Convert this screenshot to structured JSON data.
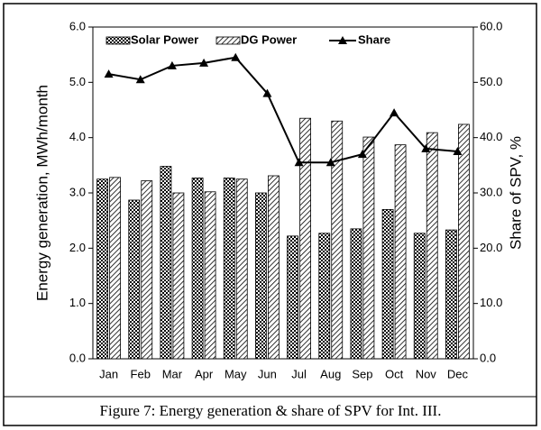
{
  "caption": "Figure 7: Energy generation & share of SPV for Int. III.",
  "chart_data": {
    "type": "bar",
    "ylabel": "Energy generation, MWh/month",
    "y2label": "Share of SPV, %",
    "categories": [
      "Jan",
      "Feb",
      "Mar",
      "Apr",
      "May",
      "Jun",
      "Jul",
      "Aug",
      "Sep",
      "Oct",
      "Nov",
      "Dec"
    ],
    "series": [
      {
        "name": "Solar Power",
        "color": "#000000",
        "values": [
          3.25,
          2.87,
          3.48,
          3.27,
          3.27,
          3.0,
          2.22,
          2.27,
          2.35,
          2.7,
          2.27,
          2.33
        ]
      },
      {
        "name": "DG Power",
        "color": "#000000",
        "values": [
          3.28,
          3.22,
          3.0,
          3.02,
          3.25,
          3.31,
          4.35,
          4.3,
          4.01,
          3.87,
          4.09,
          4.24
        ]
      },
      {
        "name": "Share",
        "color": "#000000",
        "axis": "y2",
        "values": [
          51.5,
          50.5,
          53,
          53.5,
          54.5,
          48,
          35.5,
          35.5,
          37,
          44.5,
          38,
          37.5
        ]
      }
    ],
    "ylim": [
      0,
      6
    ],
    "yticks": [
      {
        "value": 0,
        "label": "0.0"
      },
      {
        "value": 1,
        "label": "1.0"
      },
      {
        "value": 2,
        "label": "2.0"
      },
      {
        "value": 3,
        "label": "3.0"
      },
      {
        "value": 4,
        "label": "4.0"
      },
      {
        "value": 5,
        "label": "5.0"
      },
      {
        "value": 6,
        "label": "6.0"
      }
    ],
    "y2lim": [
      0,
      60
    ],
    "y2ticks": [
      {
        "value": 0,
        "label": "0.0"
      },
      {
        "value": 10,
        "label": "10.0"
      },
      {
        "value": 20,
        "label": "20.0"
      },
      {
        "value": 30,
        "label": "30.0"
      },
      {
        "value": 40,
        "label": "40.0"
      },
      {
        "value": 50,
        "label": "50.0"
      },
      {
        "value": 60,
        "label": "60.0"
      }
    ],
    "legend": "top"
  }
}
